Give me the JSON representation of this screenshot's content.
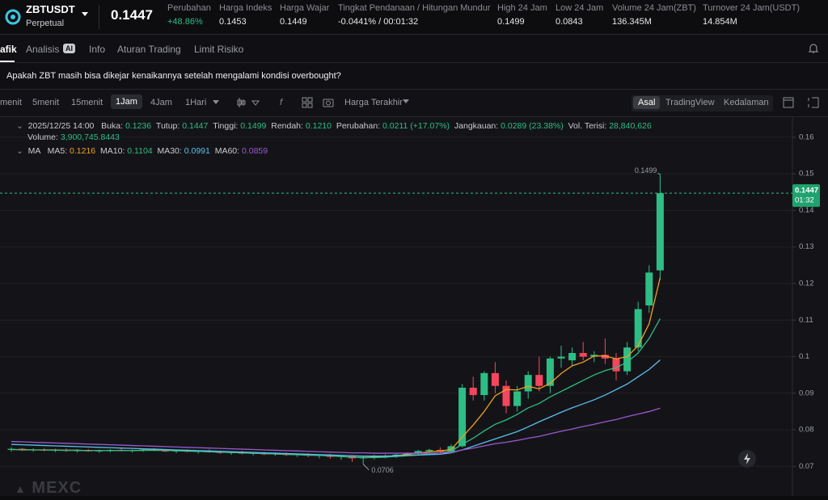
{
  "header": {
    "symbol": "ZBTUSDT",
    "contract": "Perpetual",
    "price": "0.1447",
    "stats": [
      {
        "label": "Perubahan",
        "value": "+48.86%"
      },
      {
        "label": "Harga Indeks",
        "value": "0.1453"
      },
      {
        "label": "Harga Wajar",
        "value": "0.1449"
      },
      {
        "label": "Tingkat Pendanaan / Hitungan Mundur",
        "value": "-0.0441% / 00:01:32"
      },
      {
        "label": "High 24 Jam",
        "value": "0.1499"
      },
      {
        "label": "Low 24 Jam",
        "value": "0.0843"
      },
      {
        "label": "Volume 24 Jam(ZBT)",
        "value": "136.345M"
      },
      {
        "label": "Turnover 24 Jam(USDT)",
        "value": "14.854M"
      }
    ]
  },
  "tabs": [
    "afik",
    "Analisis",
    "AI",
    "Info",
    "Aturan Trading",
    "Limit Risiko"
  ],
  "question": "Apakah ZBT masih bisa dikejar kenaikannya setelah mengalami kondisi overbought?",
  "toolbar": {
    "intervals": [
      "menit",
      "5menit",
      "15menit",
      "1Jam",
      "4Jam",
      "1Hari"
    ],
    "price_source": "Harga Terakhir",
    "views": [
      "Asal",
      "TradingView",
      "Kedalaman"
    ]
  },
  "info_bar": {
    "time": "2025/12/25 14:00",
    "fields": [
      {
        "label": "Buka:",
        "value": "0.1236"
      },
      {
        "label": "Tutup:",
        "value": "0.1447"
      },
      {
        "label": "Tinggi:",
        "value": "0.1499"
      },
      {
        "label": "Rendah:",
        "value": "0.1210"
      },
      {
        "label": "Perubahan:",
        "value": "0.0211 (+17.07%)"
      },
      {
        "label": "Jangkauan:",
        "value": "0.0289 (23.38%)"
      },
      {
        "label": "Vol. Terisi:",
        "value": "28,840,626"
      }
    ],
    "volume_label": "Volume:",
    "volume_value": "3,900,745.8443"
  },
  "watermark": "MEXC",
  "chart_data": {
    "type": "candlestick",
    "up_color": "#2ebd85",
    "down_color": "#f6465d",
    "grid": true,
    "ylim": [
      0.0661,
      0.1655
    ],
    "yticks": [
      0.07,
      0.08,
      0.09,
      0.1,
      0.11,
      0.12,
      0.13,
      0.14,
      0.15,
      0.16
    ],
    "open": [
      0.0745,
      0.0748,
      0.0744,
      0.0746,
      0.0743,
      0.0745,
      0.0742,
      0.0744,
      0.0741,
      0.0743,
      0.0745,
      0.0742,
      0.0744,
      0.0746,
      0.0743,
      0.0741,
      0.0743,
      0.074,
      0.0742,
      0.0739,
      0.0737,
      0.0739,
      0.0735,
      0.0737,
      0.0733,
      0.0735,
      0.0731,
      0.0733,
      0.0729,
      0.0731,
      0.0726,
      0.0728,
      0.0722,
      0.0725,
      0.0729,
      0.0727,
      0.0732,
      0.0736,
      0.0742,
      0.0745,
      0.074,
      0.0755,
      0.0915,
      0.0895,
      0.0955,
      0.092,
      0.0865,
      0.0905,
      0.095,
      0.092,
      0.0995,
      0.099,
      0.101,
      0.1,
      0.1005,
      0.0995,
      0.096,
      0.1025,
      0.114,
      0.1236
    ],
    "high": [
      0.0752,
      0.075,
      0.0749,
      0.075,
      0.0748,
      0.0749,
      0.0747,
      0.0748,
      0.0746,
      0.0747,
      0.0749,
      0.0746,
      0.0748,
      0.075,
      0.0747,
      0.0745,
      0.0746,
      0.0744,
      0.0746,
      0.0743,
      0.0741,
      0.0742,
      0.0739,
      0.074,
      0.0738,
      0.0738,
      0.0735,
      0.0736,
      0.0733,
      0.0734,
      0.0731,
      0.0731,
      0.0727,
      0.0731,
      0.0733,
      0.0734,
      0.0738,
      0.0745,
      0.0748,
      0.0752,
      0.076,
      0.0925,
      0.0945,
      0.096,
      0.0985,
      0.0935,
      0.092,
      0.096,
      0.1,
      0.1,
      0.103,
      0.1025,
      0.104,
      0.1015,
      0.105,
      0.101,
      0.104,
      0.115,
      0.125,
      0.1499
    ],
    "low": [
      0.074,
      0.0742,
      0.074,
      0.0741,
      0.0739,
      0.074,
      0.0738,
      0.074,
      0.0737,
      0.0739,
      0.0741,
      0.0738,
      0.074,
      0.0742,
      0.0739,
      0.0736,
      0.0738,
      0.0735,
      0.0737,
      0.0734,
      0.0732,
      0.0733,
      0.073,
      0.0731,
      0.0729,
      0.0728,
      0.0726,
      0.0725,
      0.0722,
      0.0721,
      0.0718,
      0.0712,
      0.0706,
      0.0719,
      0.0722,
      0.0723,
      0.0728,
      0.0731,
      0.0736,
      0.0738,
      0.0738,
      0.0752,
      0.088,
      0.088,
      0.09,
      0.0845,
      0.085,
      0.0885,
      0.0905,
      0.09,
      0.097,
      0.0975,
      0.099,
      0.0985,
      0.098,
      0.0935,
      0.095,
      0.1015,
      0.112,
      0.121
    ],
    "close": [
      0.0748,
      0.0744,
      0.0746,
      0.0743,
      0.0745,
      0.0742,
      0.0744,
      0.0741,
      0.0743,
      0.0745,
      0.0742,
      0.0744,
      0.0746,
      0.0743,
      0.0741,
      0.0743,
      0.074,
      0.0742,
      0.0739,
      0.0737,
      0.0739,
      0.0735,
      0.0737,
      0.0733,
      0.0735,
      0.0731,
      0.0733,
      0.0729,
      0.0731,
      0.0726,
      0.0728,
      0.0722,
      0.0725,
      0.0729,
      0.0727,
      0.0732,
      0.0736,
      0.0742,
      0.0745,
      0.074,
      0.0755,
      0.0915,
      0.0895,
      0.0955,
      0.092,
      0.0865,
      0.0905,
      0.095,
      0.092,
      0.0995,
      0.1,
      0.101,
      0.1,
      0.1005,
      0.0995,
      0.096,
      0.1025,
      0.113,
      0.123,
      0.1447
    ],
    "ma_title": "MA",
    "series": [
      {
        "name": "MA5",
        "color": "#f0a020",
        "values": [
          0.0746,
          0.0746,
          0.0745,
          0.0745,
          0.0745,
          0.0744,
          0.0744,
          0.0743,
          0.0743,
          0.0743,
          0.0743,
          0.0743,
          0.0744,
          0.0744,
          0.0744,
          0.0743,
          0.0742,
          0.0741,
          0.074,
          0.0739,
          0.0738,
          0.0737,
          0.0736,
          0.0735,
          0.0734,
          0.0733,
          0.0732,
          0.0731,
          0.073,
          0.0729,
          0.0727,
          0.0725,
          0.0724,
          0.0725,
          0.0727,
          0.0729,
          0.0733,
          0.0736,
          0.074,
          0.0742,
          0.0746,
          0.078,
          0.0813,
          0.085,
          0.0893,
          0.091,
          0.0909,
          0.0919,
          0.0912,
          0.0927,
          0.0954,
          0.0975,
          0.0985,
          0.1002,
          0.1002,
          0.0994,
          0.1,
          0.103,
          0.109,
          0.1216
        ]
      },
      {
        "name": "MA10",
        "color": "#2ebd85",
        "values": [
          0.0746,
          0.0745,
          0.0745,
          0.0745,
          0.0744,
          0.0744,
          0.0744,
          0.0743,
          0.0743,
          0.0743,
          0.0743,
          0.0743,
          0.0744,
          0.0744,
          0.0744,
          0.0743,
          0.0742,
          0.0741,
          0.074,
          0.0739,
          0.0738,
          0.0737,
          0.0736,
          0.0735,
          0.0734,
          0.0733,
          0.0732,
          0.0731,
          0.073,
          0.0729,
          0.0727,
          0.0725,
          0.0724,
          0.0724,
          0.0725,
          0.0727,
          0.0729,
          0.0731,
          0.0734,
          0.0737,
          0.0742,
          0.076,
          0.0777,
          0.0797,
          0.0815,
          0.0827,
          0.0842,
          0.086,
          0.0872,
          0.089,
          0.0905,
          0.092,
          0.0935,
          0.095,
          0.0962,
          0.097,
          0.0985,
          0.101,
          0.105,
          0.1104
        ]
      },
      {
        "name": "MA30",
        "color": "#5bc0eb",
        "values": [
          0.076,
          0.0759,
          0.0758,
          0.0757,
          0.0756,
          0.0755,
          0.0754,
          0.0753,
          0.0752,
          0.0751,
          0.075,
          0.0749,
          0.0748,
          0.0747,
          0.0746,
          0.0745,
          0.0744,
          0.0743,
          0.0742,
          0.0741,
          0.074,
          0.0739,
          0.0738,
          0.0737,
          0.0736,
          0.0735,
          0.0734,
          0.0733,
          0.0732,
          0.0731,
          0.073,
          0.0729,
          0.0728,
          0.0728,
          0.0728,
          0.0729,
          0.073,
          0.0731,
          0.0732,
          0.0733,
          0.0737,
          0.0745,
          0.0755,
          0.0765,
          0.0775,
          0.0785,
          0.0795,
          0.0808,
          0.0822,
          0.0835,
          0.0848,
          0.086,
          0.0871,
          0.0882,
          0.0895,
          0.091,
          0.0925,
          0.0945,
          0.0965,
          0.0991
        ]
      },
      {
        "name": "MA60",
        "color": "#9b59d0",
        "values": [
          0.0768,
          0.0767,
          0.0766,
          0.0765,
          0.0764,
          0.0763,
          0.0762,
          0.0761,
          0.076,
          0.0759,
          0.0758,
          0.0757,
          0.0756,
          0.0755,
          0.0754,
          0.0753,
          0.0752,
          0.0751,
          0.075,
          0.0749,
          0.0748,
          0.0747,
          0.0746,
          0.0745,
          0.0744,
          0.0743,
          0.0742,
          0.0741,
          0.074,
          0.0739,
          0.0738,
          0.0737,
          0.0737,
          0.0736,
          0.0736,
          0.0736,
          0.0736,
          0.0736,
          0.0736,
          0.0737,
          0.0738,
          0.0745,
          0.075,
          0.0756,
          0.0762,
          0.0766,
          0.0771,
          0.0777,
          0.0782,
          0.0789,
          0.0796,
          0.0802,
          0.0809,
          0.0815,
          0.0822,
          0.0828,
          0.0836,
          0.0843,
          0.085,
          0.0859
        ]
      }
    ],
    "high_label": "0.1499",
    "low_label": "0.0706",
    "current_price": "0.1447",
    "countdown": "01:32"
  }
}
